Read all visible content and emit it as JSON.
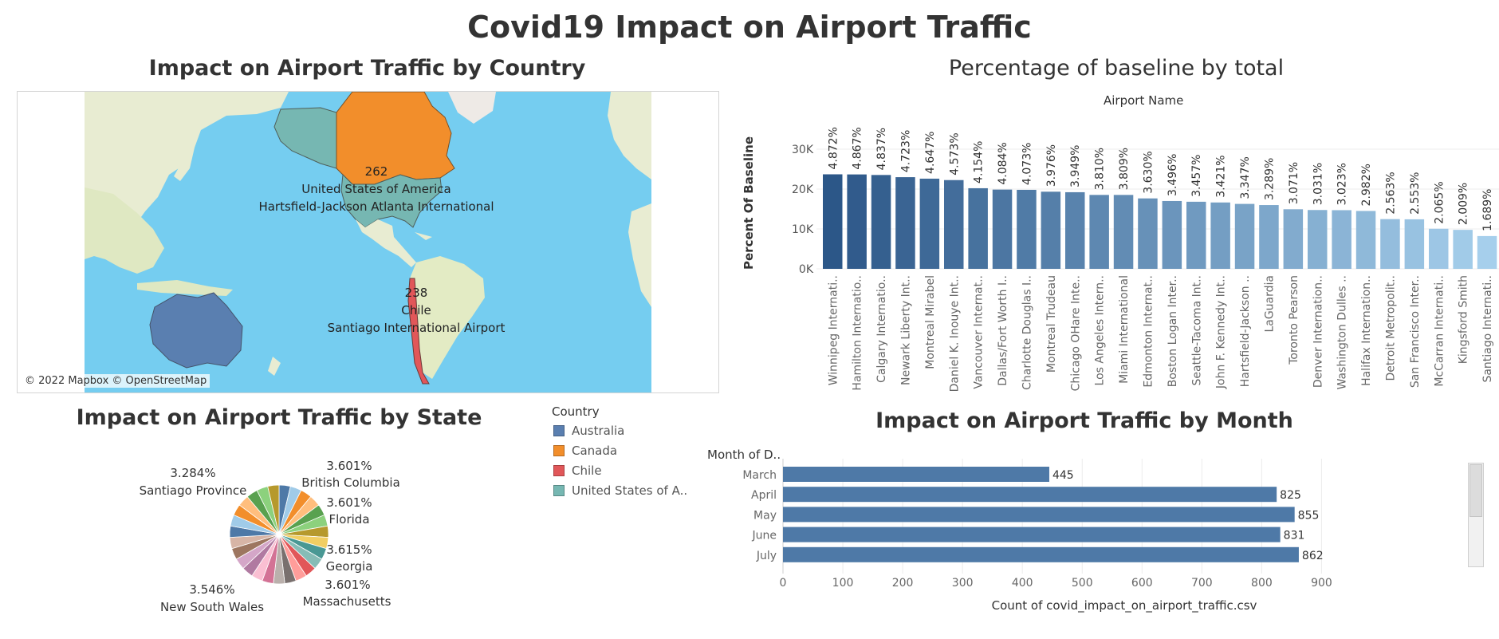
{
  "dashboard": {
    "title": "Covid19 Impact on Airport Traffic",
    "map_title": "Impact on Airport Traffic by Country",
    "state_title": "Impact on Airport Traffic by State",
    "bar_title": "Percentage of baseline by total",
    "month_title": "Impact on Airport Traffic by Month"
  },
  "colors": {
    "australia": "#5a7fb0",
    "canada": "#f28e2b",
    "chile": "#e15759",
    "usa": "#76b7b2",
    "bar_dark": "#2c5788",
    "bar_light": "#a6cfec",
    "month_bar": "#4e79a7"
  },
  "map": {
    "labels": [
      {
        "count": "262",
        "country": "United States of America",
        "airport": "Hartsfield-Jackson Atlanta International"
      },
      {
        "count": "238",
        "country": "Chile",
        "airport": "Santiago International Airport"
      }
    ],
    "copyright": "© 2022 Mapbox © OpenStreetMap"
  },
  "legend": {
    "title": "Country",
    "items": [
      {
        "label": "Australia",
        "color": "#5a7fb0"
      },
      {
        "label": "Canada",
        "color": "#f28e2b"
      },
      {
        "label": "Chile",
        "color": "#e15759"
      },
      {
        "label": "United States of A..",
        "color": "#76b7b2"
      }
    ]
  },
  "chart_data": [
    {
      "type": "pie",
      "title": "Impact on Airport Traffic by State",
      "labeled_slices": [
        {
          "label": "British Columbia",
          "value": "3.601%"
        },
        {
          "label": "Florida",
          "value": "3.601%"
        },
        {
          "label": "Georgia",
          "value": "3.615%"
        },
        {
          "label": "Massachusetts",
          "value": "3.601%"
        },
        {
          "label": "New South Wales",
          "value": "3.546%"
        },
        {
          "label": "Santiago Province",
          "value": "3.284%"
        }
      ],
      "slice_colors": [
        "#4e79a7",
        "#a0cbe8",
        "#f28e2b",
        "#ffbe7d",
        "#59a14f",
        "#8cd17d",
        "#b6992d",
        "#f1ce63",
        "#499894",
        "#86bcb6",
        "#e15759",
        "#ff9d9a",
        "#79706e",
        "#bab0ac",
        "#d37295",
        "#fabfd2",
        "#b07aa1",
        "#d4a6c8",
        "#9d7660",
        "#d7b5a6",
        "#4e79a7",
        "#a0cbe8",
        "#f28e2b",
        "#ffbe7d",
        "#59a14f",
        "#8cd17d",
        "#b6992d"
      ]
    },
    {
      "type": "bar",
      "title": "Percentage of baseline by total",
      "xlabel": "Airport Name",
      "ylabel": "Percent Of Baseline",
      "ylim": [
        0,
        35000
      ],
      "yticks": [
        "0K",
        "10K",
        "20K",
        "30K"
      ],
      "categories": [
        "Winnipeg Internati..",
        "Hamilton Internatio..",
        "Calgary Internatio..",
        "Newark Liberty Int..",
        "Montreal Mirabel",
        "Daniel K. Inouye Int..",
        "Vancouver Internat..",
        "Dallas/Fort Worth I..",
        "Charlotte Douglas I..",
        "Montreal Trudeau",
        "Chicago OHare Inte..",
        "Los Angeles Intern..",
        "Miami International",
        "Edmonton Internat..",
        "Boston Logan Inter..",
        "Seattle-Tacoma Int..",
        "John F. Kennedy Int..",
        "Hartsfield-Jackson ..",
        "LaGuardia",
        "Toronto Pearson",
        "Denver Internation..",
        "Washington Dulles ..",
        "Halifax Internation..",
        "Detroit Metropolit..",
        "San Francisco Inter..",
        "McCarran Internati..",
        "Kingsford Smith",
        "Santiago Internati.."
      ],
      "values": [
        23700,
        23670,
        23530,
        22980,
        22610,
        22250,
        20210,
        19870,
        19810,
        19340,
        19210,
        18530,
        18530,
        17660,
        17010,
        16820,
        16640,
        16280,
        15990,
        14940,
        14750,
        14710,
        14510,
        12470,
        12420,
        10050,
        9770,
        8220
      ],
      "labels": [
        "4.872%",
        "4.867%",
        "4.837%",
        "4.723%",
        "4.647%",
        "4.573%",
        "4.154%",
        "4.084%",
        "4.073%",
        "3.976%",
        "3.949%",
        "3.810%",
        "3.809%",
        "3.630%",
        "3.496%",
        "3.457%",
        "3.421%",
        "3.347%",
        "3.289%",
        "3.071%",
        "3.031%",
        "3.023%",
        "2.982%",
        "2.563%",
        "2.553%",
        "2.065%",
        "2.009%",
        "1.689%"
      ]
    },
    {
      "type": "bar",
      "orientation": "horizontal",
      "title": "Impact on Airport Traffic by Month",
      "category_header": "Month of D..",
      "xlabel": "Count of covid_impact_on_airport_traffic.csv",
      "xlim": [
        0,
        900
      ],
      "xticks": [
        0,
        100,
        200,
        300,
        400,
        500,
        600,
        700,
        800,
        900
      ],
      "categories": [
        "March",
        "April",
        "May",
        "June",
        "July"
      ],
      "values": [
        445,
        825,
        855,
        831,
        862
      ]
    }
  ]
}
